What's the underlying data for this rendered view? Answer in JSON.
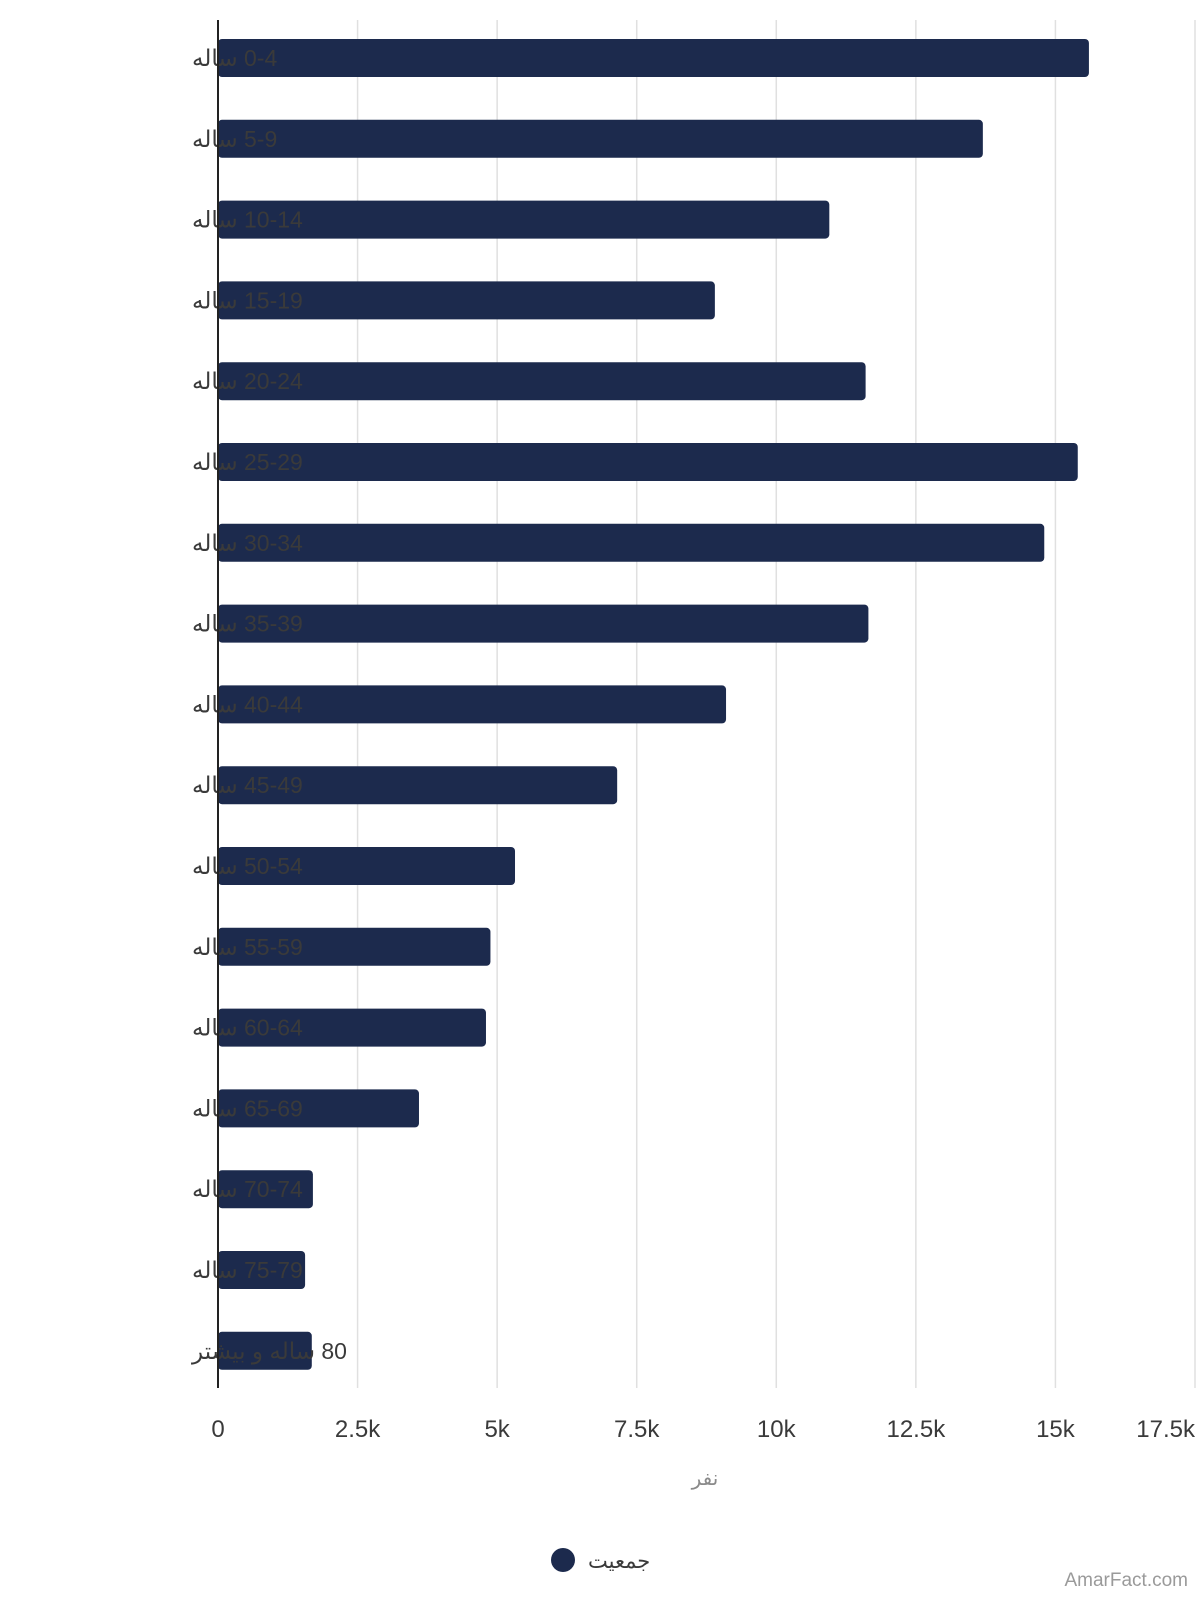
{
  "chart_data": {
    "type": "bar",
    "orientation": "horizontal",
    "categories": [
      "0-4 ساله",
      "5-9 ساله",
      "10-14 ساله",
      "15-19 ساله",
      "20-24 ساله",
      "25-29 ساله",
      "30-34 ساله",
      "35-39 ساله",
      "40-44 ساله",
      "45-49 ساله",
      "50-54 ساله",
      "55-59 ساله",
      "60-64 ساله",
      "65-69 ساله",
      "70-74 ساله",
      "75-79 ساله",
      "80 ساله و بیشتر"
    ],
    "series": [
      {
        "name": "جمعیت",
        "color": "#1c2a4d",
        "values": [
          15600,
          13700,
          10950,
          8900,
          11600,
          15400,
          14800,
          11650,
          9100,
          7150,
          5320,
          4880,
          4800,
          3600,
          1700,
          1560,
          1680
        ]
      }
    ],
    "xlabel": "نفر",
    "ylabel": "",
    "xlim": [
      0,
      17500
    ],
    "xticks": [
      0,
      2500,
      5000,
      7500,
      10000,
      12500,
      15000,
      17500
    ],
    "xtick_labels": [
      "0",
      "2.5k",
      "5k",
      "7.5k",
      "10k",
      "12.5k",
      "15k",
      "17.5k"
    ],
    "grid": "vertical",
    "legend_position": "bottom-center"
  },
  "watermark": "AmarFact.com"
}
